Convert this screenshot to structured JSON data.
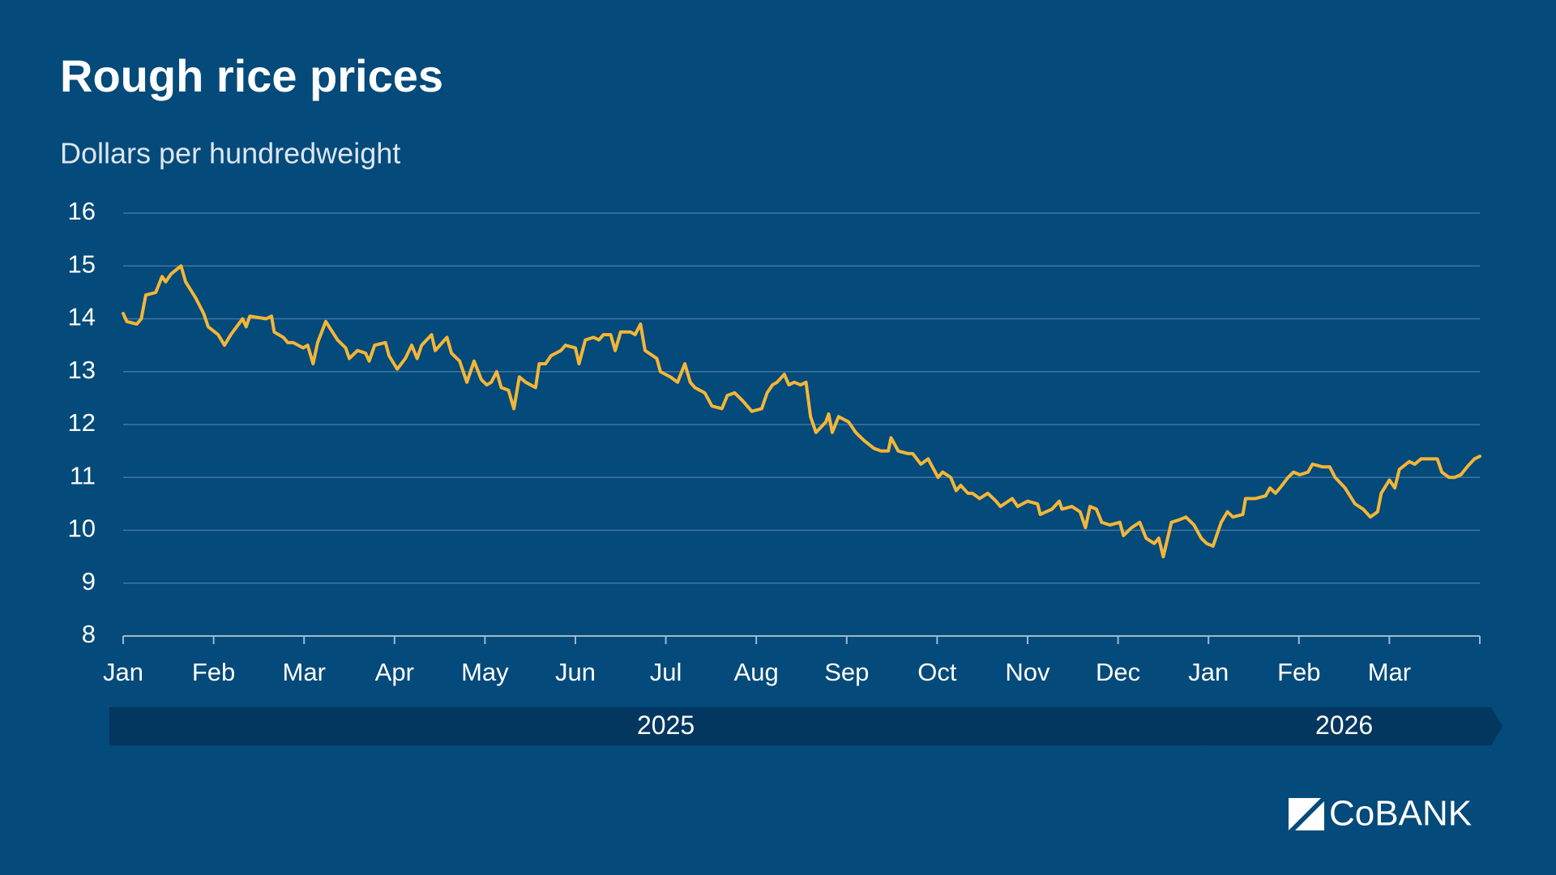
{
  "chart_data": {
    "type": "line",
    "title": "Rough rice prices",
    "subtitle": "Dollars per hundredweight",
    "logo": "CoBANK",
    "color": "#f4b637",
    "grid": true,
    "xlim": [
      0,
      15
    ],
    "xticks": [
      {
        "value": 0,
        "label": "Jan"
      },
      {
        "value": 1,
        "label": "Feb"
      },
      {
        "value": 2,
        "label": "Mar"
      },
      {
        "value": 3,
        "label": "Apr"
      },
      {
        "value": 4,
        "label": "May"
      },
      {
        "value": 5,
        "label": "Jun"
      },
      {
        "value": 6,
        "label": "Jul"
      },
      {
        "value": 7,
        "label": "Aug"
      },
      {
        "value": 8,
        "label": "Sep"
      },
      {
        "value": 9,
        "label": "Oct"
      },
      {
        "value": 10,
        "label": "Nov"
      },
      {
        "value": 11,
        "label": "Dec"
      },
      {
        "value": 12,
        "label": "Jan"
      },
      {
        "value": 13,
        "label": "Feb"
      },
      {
        "value": 14,
        "label": "Mar"
      }
    ],
    "year_bands": [
      {
        "label": "2025",
        "start": 0,
        "end": 12
      },
      {
        "label": "2026",
        "start": 12,
        "end": 15
      }
    ],
    "ylim": [
      8,
      16
    ],
    "yticks": [
      8,
      9,
      10,
      11,
      12,
      13,
      14,
      15,
      16
    ],
    "x": [
      0,
      0.04,
      0.15,
      0.2,
      0.25,
      0.36,
      0.43,
      0.47,
      0.53,
      0.64,
      0.69,
      0.8,
      0.89,
      0.94,
      1.05,
      1.12,
      1.19,
      1.32,
      1.36,
      1.4,
      1.58,
      1.64,
      1.67,
      1.77,
      1.82,
      1.88,
      1.99,
      2.04,
      2.1,
      2.15,
      2.24,
      2.37,
      2.46,
      2.5,
      2.59,
      2.68,
      2.72,
      2.78,
      2.9,
      2.94,
      3.03,
      3.12,
      3.19,
      3.25,
      3.3,
      3.41,
      3.45,
      3.58,
      3.63,
      3.72,
      3.8,
      3.88,
      3.96,
      4.02,
      4.07,
      4.13,
      4.18,
      4.26,
      4.32,
      4.38,
      4.45,
      4.56,
      4.6,
      4.67,
      4.73,
      4.84,
      4.89,
      5.0,
      5.04,
      5.11,
      5.2,
      5.26,
      5.31,
      5.39,
      5.44,
      5.5,
      5.61,
      5.66,
      5.72,
      5.77,
      5.9,
      5.94,
      6.05,
      6.13,
      6.21,
      6.27,
      6.32,
      6.43,
      6.51,
      6.62,
      6.68,
      6.76,
      6.85,
      6.95,
      7.06,
      7.12,
      7.18,
      7.23,
      7.31,
      7.36,
      7.42,
      7.49,
      7.55,
      7.6,
      7.66,
      7.77,
      7.8,
      7.84,
      7.91,
      8.02,
      8.1,
      8.19,
      8.3,
      8.38,
      8.46,
      8.49,
      8.57,
      8.68,
      8.73,
      8.82,
      8.9,
      9.01,
      9.06,
      9.15,
      9.21,
      9.26,
      9.34,
      9.39,
      9.47,
      9.56,
      9.65,
      9.7,
      9.83,
      9.89,
      10.0,
      10.11,
      10.14,
      10.27,
      10.35,
      10.38,
      10.49,
      10.58,
      10.64,
      10.69,
      10.76,
      10.82,
      10.91,
      11.02,
      11.06,
      11.15,
      11.24,
      11.31,
      11.4,
      11.45,
      11.5,
      11.59,
      11.68,
      11.75,
      11.84,
      11.92,
      11.98,
      12.05,
      12.14,
      12.21,
      12.27,
      12.38,
      12.41,
      12.52,
      12.63,
      12.68,
      12.74,
      12.79,
      12.88,
      12.94,
      13.01,
      13.1,
      13.15,
      13.26,
      13.34,
      13.4,
      13.51,
      13.62,
      13.71,
      13.79,
      13.87,
      13.91,
      14.0,
      14.06,
      14.11,
      14.22,
      14.28,
      14.35,
      14.44,
      14.53,
      14.58,
      14.66,
      14.72,
      14.79,
      14.86,
      14.94,
      15.0
    ],
    "values": [
      14.1,
      13.95,
      13.9,
      14.0,
      14.45,
      14.5,
      14.8,
      14.7,
      14.85,
      15.0,
      14.7,
      14.4,
      14.1,
      13.85,
      13.7,
      13.5,
      13.7,
      14.0,
      13.85,
      14.05,
      14.0,
      14.05,
      13.75,
      13.65,
      13.55,
      13.55,
      13.45,
      13.5,
      13.15,
      13.55,
      13.95,
      13.6,
      13.45,
      13.25,
      13.4,
      13.35,
      13.2,
      13.5,
      13.55,
      13.3,
      13.05,
      13.25,
      13.5,
      13.25,
      13.5,
      13.7,
      13.4,
      13.65,
      13.35,
      13.2,
      12.8,
      13.2,
      12.85,
      12.75,
      12.8,
      13.0,
      12.7,
      12.65,
      12.3,
      12.9,
      12.8,
      12.7,
      13.15,
      13.15,
      13.3,
      13.4,
      13.5,
      13.45,
      13.15,
      13.6,
      13.65,
      13.6,
      13.7,
      13.7,
      13.4,
      13.75,
      13.75,
      13.7,
      13.9,
      13.4,
      13.25,
      13.0,
      12.9,
      12.8,
      13.15,
      12.8,
      12.7,
      12.6,
      12.35,
      12.3,
      12.55,
      12.6,
      12.45,
      12.25,
      12.3,
      12.6,
      12.75,
      12.8,
      12.95,
      12.75,
      12.8,
      12.75,
      12.8,
      12.15,
      11.85,
      12.05,
      12.2,
      11.85,
      12.15,
      12.05,
      11.85,
      11.7,
      11.55,
      11.5,
      11.5,
      11.75,
      11.5,
      11.45,
      11.45,
      11.25,
      11.35,
      11.0,
      11.1,
      11.0,
      10.75,
      10.85,
      10.7,
      10.7,
      10.6,
      10.7,
      10.55,
      10.45,
      10.6,
      10.45,
      10.55,
      10.5,
      10.3,
      10.4,
      10.55,
      10.4,
      10.45,
      10.35,
      10.05,
      10.45,
      10.4,
      10.15,
      10.1,
      10.15,
      9.9,
      10.05,
      10.15,
      9.85,
      9.75,
      9.85,
      9.5,
      10.15,
      10.2,
      10.25,
      10.1,
      9.85,
      9.75,
      9.7,
      10.15,
      10.35,
      10.25,
      10.3,
      10.6,
      10.6,
      10.65,
      10.8,
      10.7,
      10.8,
      11.0,
      11.1,
      11.05,
      11.1,
      11.25,
      11.2,
      11.2,
      11.0,
      10.8,
      10.5,
      10.4,
      10.25,
      10.35,
      10.7,
      10.95,
      10.8,
      11.15,
      11.3,
      11.25,
      11.35,
      11.35,
      11.35,
      11.1,
      11.0,
      11.0,
      11.05,
      11.2,
      11.35,
      11.4
    ]
  }
}
